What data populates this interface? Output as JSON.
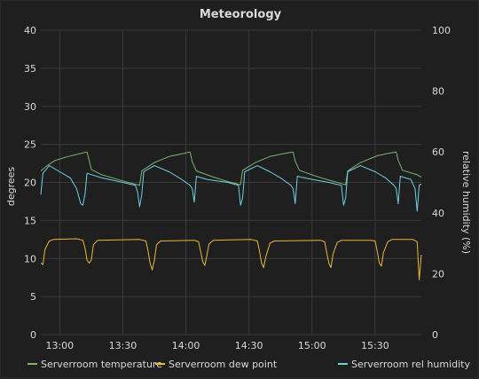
{
  "panel": {
    "title": "Meteorology"
  },
  "chart_data": {
    "type": "line",
    "title": "Meteorology",
    "ylabel": "degrees",
    "y2label": "relative humidity (%)",
    "ylim": [
      0,
      40
    ],
    "y2lim": [
      0,
      100
    ],
    "xlim": [
      "12:51",
      "15:52"
    ],
    "grid": true,
    "legend_position": "bottom",
    "x_tick_labels": [
      "13:00",
      "13:30",
      "14:00",
      "14:30",
      "15:00",
      "15:30"
    ],
    "y_tick_labels": [
      "0",
      "5",
      "10",
      "15",
      "20",
      "25",
      "30",
      "35",
      "40"
    ],
    "y2_tick_labels": [
      "0",
      "20",
      "40",
      "60",
      "80",
      "100"
    ],
    "series": [
      {
        "name": "Serverroom temperature",
        "axis": "left",
        "color": "#7eb26d",
        "points": [
          [
            "12:51",
            21.5
          ],
          [
            "12:54",
            22.2
          ],
          [
            "12:58",
            22.9
          ],
          [
            "13:04",
            23.4
          ],
          [
            "13:10",
            23.8
          ],
          [
            "13:13",
            24.0
          ],
          [
            "13:14",
            22.9
          ],
          [
            "13:15",
            21.7
          ],
          [
            "13:20",
            21.0
          ],
          [
            "13:30",
            20.2
          ],
          [
            "13:38",
            19.6
          ],
          [
            "13:39",
            21.5
          ],
          [
            "13:45",
            22.6
          ],
          [
            "13:52",
            23.4
          ],
          [
            "13:59",
            23.8
          ],
          [
            "14:02",
            24.0
          ],
          [
            "14:03",
            22.7
          ],
          [
            "14:05",
            21.5
          ],
          [
            "14:12",
            20.8
          ],
          [
            "14:20",
            20.1
          ],
          [
            "14:26",
            19.7
          ],
          [
            "14:27",
            21.6
          ],
          [
            "14:33",
            22.6
          ],
          [
            "14:40",
            23.4
          ],
          [
            "14:47",
            23.8
          ],
          [
            "14:51",
            24.0
          ],
          [
            "14:52",
            22.8
          ],
          [
            "14:54",
            21.6
          ],
          [
            "15:01",
            20.9
          ],
          [
            "15:08",
            20.3
          ],
          [
            "15:16",
            19.7
          ],
          [
            "15:17",
            21.5
          ],
          [
            "15:23",
            22.6
          ],
          [
            "15:31",
            23.5
          ],
          [
            "15:36",
            23.8
          ],
          [
            "15:40",
            24.0
          ],
          [
            "15:41",
            22.9
          ],
          [
            "15:43",
            21.6
          ],
          [
            "15:50",
            21.0
          ],
          [
            "15:52",
            20.7
          ]
        ]
      },
      {
        "name": "Serverroom dew point",
        "axis": "left",
        "color": "#eab839",
        "points": [
          [
            "12:51",
            9.4
          ],
          [
            "12:52",
            9.2
          ],
          [
            "12:53",
            11.2
          ],
          [
            "12:55",
            12.3
          ],
          [
            "12:57",
            12.5
          ],
          [
            "13:08",
            12.6
          ],
          [
            "13:11",
            12.4
          ],
          [
            "13:12",
            11.4
          ],
          [
            "13:13",
            9.8
          ],
          [
            "13:14",
            9.4
          ],
          [
            "13:15",
            9.8
          ],
          [
            "13:16",
            11.8
          ],
          [
            "13:18",
            12.4
          ],
          [
            "13:38",
            12.5
          ],
          [
            "13:41",
            12.3
          ],
          [
            "13:42",
            11.0
          ],
          [
            "13:43",
            9.4
          ],
          [
            "13:44",
            8.5
          ],
          [
            "13:45",
            9.7
          ],
          [
            "13:46",
            11.8
          ],
          [
            "13:48",
            12.3
          ],
          [
            "14:04",
            12.4
          ],
          [
            "14:06",
            12.2
          ],
          [
            "14:07",
            11.0
          ],
          [
            "14:08",
            9.6
          ],
          [
            "14:09",
            9.1
          ],
          [
            "14:10",
            10.4
          ],
          [
            "14:11",
            11.9
          ],
          [
            "14:13",
            12.4
          ],
          [
            "14:31",
            12.5
          ],
          [
            "14:34",
            12.3
          ],
          [
            "14:35",
            11.0
          ],
          [
            "14:36",
            9.4
          ],
          [
            "14:37",
            8.8
          ],
          [
            "14:38",
            10.2
          ],
          [
            "14:40",
            12.0
          ],
          [
            "14:42",
            12.3
          ],
          [
            "15:04",
            12.4
          ],
          [
            "15:06",
            12.2
          ],
          [
            "15:07",
            10.8
          ],
          [
            "15:08",
            9.4
          ],
          [
            "15:09",
            8.8
          ],
          [
            "15:10",
            10.6
          ],
          [
            "15:12",
            12.1
          ],
          [
            "15:14",
            12.4
          ],
          [
            "15:28",
            12.4
          ],
          [
            "15:30",
            12.3
          ],
          [
            "15:31",
            11.0
          ],
          [
            "15:32",
            9.4
          ],
          [
            "15:33",
            9.0
          ],
          [
            "15:34",
            10.8
          ],
          [
            "15:36",
            12.2
          ],
          [
            "15:38",
            12.5
          ],
          [
            "15:48",
            12.5
          ],
          [
            "15:50",
            12.2
          ],
          [
            "15:51",
            7.2
          ],
          [
            "15:52",
            10.5
          ]
        ]
      },
      {
        "name": "Serverroom rel humidity",
        "axis": "right",
        "color": "#6ed0e0",
        "points": [
          [
            "12:51",
            46
          ],
          [
            "12:52",
            53
          ],
          [
            "12:55",
            55.5
          ],
          [
            "13:00",
            53.5
          ],
          [
            "13:05",
            51.5
          ],
          [
            "13:08",
            48
          ],
          [
            "13:10",
            43
          ],
          [
            "13:11",
            42.5
          ],
          [
            "13:12",
            46
          ],
          [
            "13:13",
            53
          ],
          [
            "13:20",
            51.5
          ],
          [
            "13:30",
            50
          ],
          [
            "13:36",
            49
          ],
          [
            "13:37",
            47
          ],
          [
            "13:38",
            42
          ],
          [
            "13:39",
            46
          ],
          [
            "13:40",
            53.5
          ],
          [
            "13:45",
            55.5
          ],
          [
            "13:52",
            53.5
          ],
          [
            "13:58",
            51
          ],
          [
            "14:02",
            49
          ],
          [
            "14:03",
            48
          ],
          [
            "14:04",
            43.5
          ],
          [
            "14:05",
            52
          ],
          [
            "14:10",
            51
          ],
          [
            "14:20",
            50
          ],
          [
            "14:25",
            49
          ],
          [
            "14:26",
            42.5
          ],
          [
            "14:27",
            45
          ],
          [
            "14:28",
            53.5
          ],
          [
            "14:34",
            55.5
          ],
          [
            "14:40",
            53.5
          ],
          [
            "14:45",
            51.5
          ],
          [
            "14:50",
            49
          ],
          [
            "14:51",
            48
          ],
          [
            "14:52",
            43
          ],
          [
            "14:53",
            52
          ],
          [
            "15:00",
            51
          ],
          [
            "15:08",
            50
          ],
          [
            "15:14",
            49
          ],
          [
            "15:15",
            42.5
          ],
          [
            "15:16",
            45
          ],
          [
            "15:17",
            53.5
          ],
          [
            "15:23",
            55.5
          ],
          [
            "15:30",
            53.5
          ],
          [
            "15:35",
            51.5
          ],
          [
            "15:39",
            49
          ],
          [
            "15:40",
            48
          ],
          [
            "15:41",
            43
          ],
          [
            "15:42",
            52
          ],
          [
            "15:47",
            51
          ],
          [
            "15:49",
            48
          ],
          [
            "15:50",
            40.5
          ],
          [
            "15:51",
            49
          ],
          [
            "15:52",
            49.5
          ]
        ]
      }
    ]
  }
}
